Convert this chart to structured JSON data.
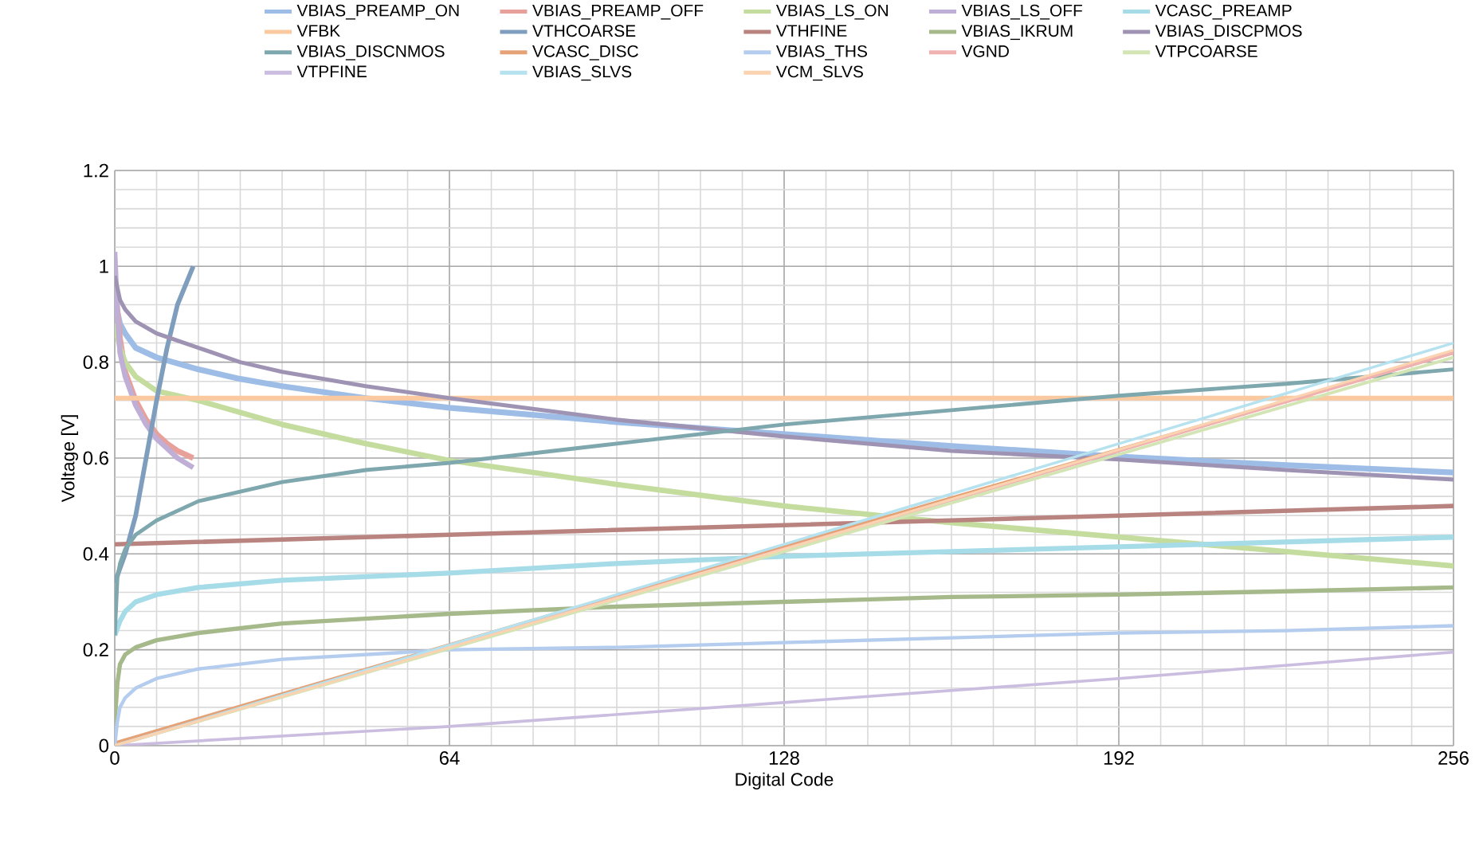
{
  "chart_data": {
    "type": "line",
    "xlabel": "Digital Code",
    "ylabel": "Voltage [V]",
    "xlim": [
      0,
      256
    ],
    "ylim": [
      0,
      1.2
    ],
    "xticks": [
      0,
      64,
      128,
      192,
      256
    ],
    "yticks": [
      0,
      0.2,
      0.4,
      0.6,
      0.8,
      1,
      1.2
    ],
    "grid": true,
    "legend": "top",
    "line_style": "solid",
    "series": [
      {
        "name": "VBIAS_PREAMP_ON",
        "color": "#9dbde6",
        "x": [
          0,
          1,
          2,
          4,
          8,
          16,
          24,
          32,
          48,
          64,
          96,
          128,
          160,
          192,
          224,
          256
        ],
        "values": [
          0.93,
          0.88,
          0.86,
          0.83,
          0.81,
          0.785,
          0.765,
          0.75,
          0.725,
          0.705,
          0.675,
          0.65,
          0.625,
          0.603,
          0.585,
          0.57
        ]
      },
      {
        "name": "VBIAS_PREAMP_OFF",
        "color": "#e8a09a",
        "x": [
          0,
          1,
          2,
          4,
          6,
          8,
          10,
          12,
          15
        ],
        "values": [
          0.97,
          0.85,
          0.78,
          0.72,
          0.68,
          0.65,
          0.63,
          0.615,
          0.6
        ]
      },
      {
        "name": "VBIAS_LS_ON",
        "color": "#c5dc9f",
        "x": [
          0,
          1,
          2,
          4,
          8,
          16,
          24,
          32,
          48,
          64,
          96,
          128,
          160,
          192,
          224,
          256
        ],
        "values": [
          0.88,
          0.83,
          0.8,
          0.77,
          0.74,
          0.72,
          0.695,
          0.67,
          0.63,
          0.595,
          0.545,
          0.5,
          0.465,
          0.435,
          0.405,
          0.375
        ]
      },
      {
        "name": "VBIAS_LS_OFF",
        "color": "#bfaed6",
        "x": [
          0,
          0.5,
          1,
          2,
          4,
          6,
          8,
          10,
          12,
          15
        ],
        "values": [
          1.03,
          0.9,
          0.82,
          0.77,
          0.71,
          0.67,
          0.64,
          0.62,
          0.6,
          0.58
        ]
      },
      {
        "name": "VCASC_PREAMP",
        "color": "#a6dbe8",
        "x": [
          0,
          1,
          2,
          4,
          8,
          16,
          32,
          64,
          96,
          128,
          160,
          192,
          224,
          256
        ],
        "values": [
          0.23,
          0.26,
          0.28,
          0.3,
          0.315,
          0.33,
          0.345,
          0.36,
          0.38,
          0.395,
          0.405,
          0.415,
          0.425,
          0.435
        ]
      },
      {
        "name": "VFBK",
        "color": "#fbc9a0",
        "x": [
          0,
          256
        ],
        "values": [
          0.725,
          0.725
        ]
      },
      {
        "name": "VTHCOARSE",
        "color": "#7f9dbd",
        "x": [
          0,
          2,
          4,
          6,
          8,
          10,
          12,
          15
        ],
        "values": [
          0.34,
          0.4,
          0.48,
          0.6,
          0.72,
          0.83,
          0.92,
          1.0
        ]
      },
      {
        "name": "VTHFINE",
        "color": "#b98480",
        "x": [
          0,
          64,
          128,
          192,
          256
        ],
        "values": [
          0.42,
          0.44,
          0.46,
          0.48,
          0.5
        ]
      },
      {
        "name": "VBIAS_IKRUM",
        "color": "#a5b98b",
        "x": [
          0,
          0.5,
          1,
          2,
          4,
          8,
          16,
          32,
          64,
          96,
          128,
          160,
          192,
          224,
          256
        ],
        "values": [
          0.05,
          0.13,
          0.17,
          0.19,
          0.205,
          0.22,
          0.235,
          0.255,
          0.275,
          0.29,
          0.3,
          0.31,
          0.315,
          0.322,
          0.33
        ]
      },
      {
        "name": "VBIAS_DISCPMOS",
        "color": "#9f93b3",
        "x": [
          0,
          1,
          2,
          4,
          8,
          16,
          24,
          32,
          48,
          64,
          96,
          128,
          160,
          192,
          224,
          256
        ],
        "values": [
          0.98,
          0.93,
          0.91,
          0.885,
          0.86,
          0.83,
          0.8,
          0.78,
          0.75,
          0.725,
          0.68,
          0.645,
          0.615,
          0.597,
          0.575,
          0.555
        ]
      },
      {
        "name": "VBIAS_DISCNMOS",
        "color": "#7fa7ae",
        "x": [
          0,
          0.5,
          1,
          2,
          4,
          8,
          16,
          32,
          48,
          64,
          96,
          128,
          160,
          192,
          224,
          256
        ],
        "values": [
          0.23,
          0.35,
          0.38,
          0.41,
          0.44,
          0.47,
          0.51,
          0.55,
          0.575,
          0.59,
          0.63,
          0.67,
          0.7,
          0.73,
          0.755,
          0.785
        ]
      },
      {
        "name": "VCASC_DISC",
        "color": "#e5a277",
        "x": [
          0,
          128,
          256
        ],
        "values": [
          0.005,
          0.415,
          0.82
        ]
      },
      {
        "name": "VBIAS_THS",
        "color": "#b4cdee",
        "x": [
          0,
          0.5,
          1,
          2,
          4,
          8,
          16,
          32,
          64,
          96,
          128,
          160,
          192,
          224,
          256
        ],
        "values": [
          0.0,
          0.05,
          0.08,
          0.1,
          0.12,
          0.14,
          0.16,
          0.18,
          0.2,
          0.205,
          0.215,
          0.225,
          0.235,
          0.24,
          0.25
        ]
      },
      {
        "name": "VGND",
        "color": "#efb2b0",
        "x": [
          0,
          128,
          256
        ],
        "values": [
          0.0,
          0.41,
          0.82
        ]
      },
      {
        "name": "VTPCOARSE",
        "color": "#d3e4b5",
        "x": [
          0,
          128,
          256
        ],
        "values": [
          0.0,
          0.405,
          0.81
        ]
      },
      {
        "name": "VTPFINE",
        "color": "#cbbde0",
        "x": [
          0,
          64,
          128,
          192,
          256
        ],
        "values": [
          0.0,
          0.04,
          0.09,
          0.14,
          0.195
        ]
      },
      {
        "name": "VBIAS_SLVS",
        "color": "#b5e2ee",
        "x": [
          0,
          128,
          256
        ],
        "values": [
          0.0,
          0.42,
          0.84
        ]
      },
      {
        "name": "VCM_SLVS",
        "color": "#fcd3b0",
        "x": [
          0,
          128,
          256
        ],
        "values": [
          0.0,
          0.41,
          0.825
        ]
      }
    ]
  }
}
